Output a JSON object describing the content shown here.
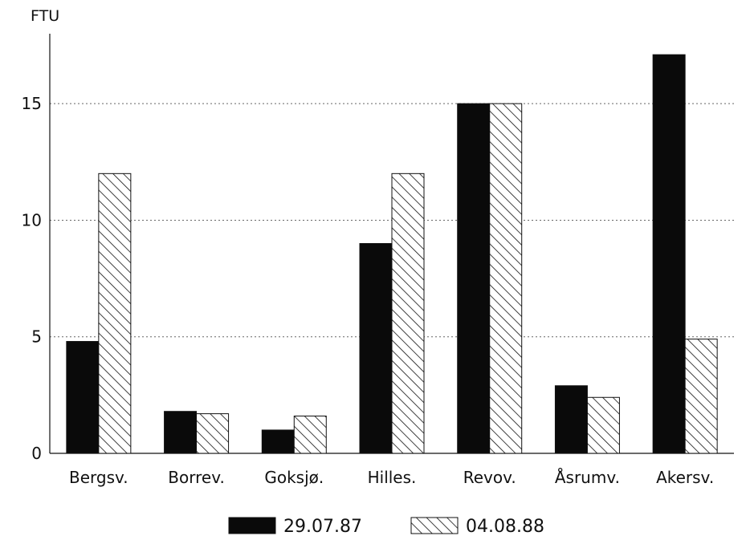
{
  "chart_data": {
    "type": "bar",
    "ylabel": "FTU",
    "ylim": [
      0,
      18
    ],
    "yticks": [
      "0",
      "5",
      "10",
      "15"
    ],
    "grid": "horizontal dotted",
    "legend_position": "bottom",
    "categories": [
      "Bergsv.",
      "Borrev.",
      "Goksjø.",
      "Hilles.",
      "Revov.",
      "Åsrumv.",
      "Akersv."
    ],
    "series": [
      {
        "name": "29.07.87",
        "pattern": "solid",
        "color": "#0a0a0a",
        "values": [
          4.8,
          1.8,
          1.0,
          9.0,
          15.0,
          2.9,
          17.1
        ]
      },
      {
        "name": "04.08.88",
        "pattern": "diagonal-hatch",
        "color": "#0a0a0a",
        "values": [
          12.0,
          1.7,
          1.6,
          12.0,
          15.0,
          2.4,
          4.9
        ]
      }
    ]
  }
}
